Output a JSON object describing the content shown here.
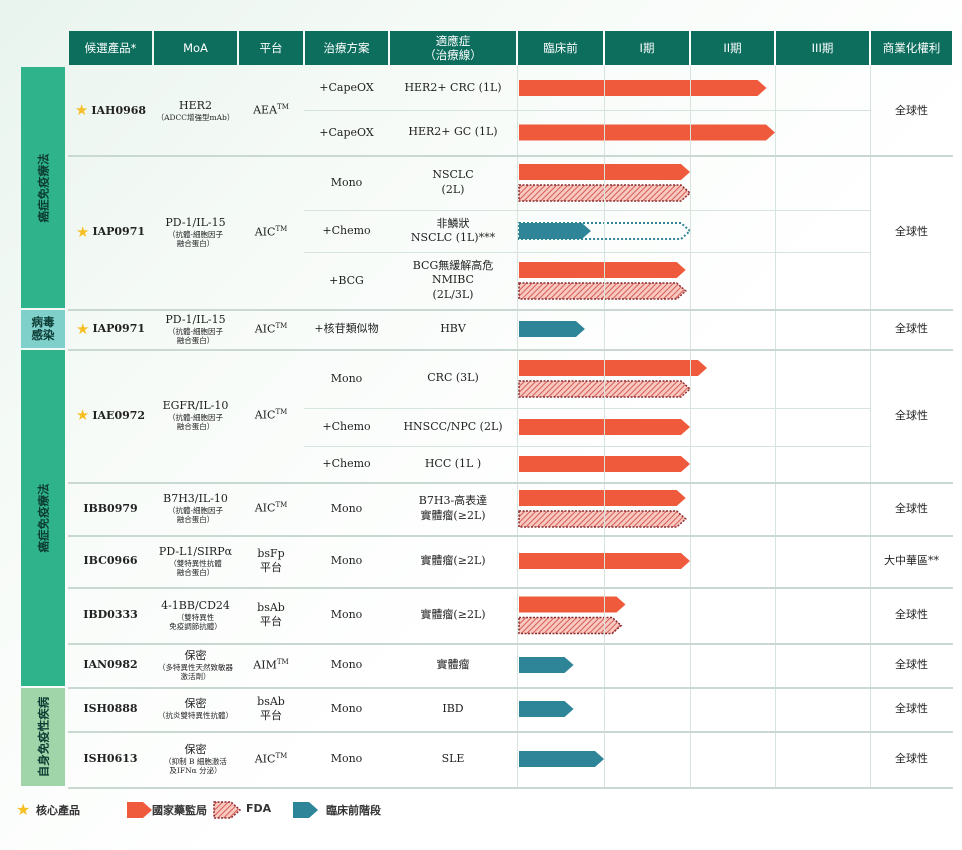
{
  "colors": {
    "header": "#0d6e5e",
    "nmpa": "#ef5a3c",
    "fda_border": "#8c2a2f",
    "preclinical": "#2d8597"
  },
  "headers": [
    "候選產品*",
    "MoA",
    "平台",
    "治療方案",
    "適應症\n（治療線）",
    "臨床前",
    "I期",
    "II期",
    "III期",
    "商業化權利"
  ],
  "categories": [
    {
      "label": "癌症免疫療法"
    },
    {
      "label": "病毒\n感染"
    },
    {
      "label": "癌症免疫療法"
    },
    {
      "label": "自身免疫性疾病"
    }
  ],
  "products": [
    {
      "name": "IAH0968",
      "core": true,
      "moa": "HER2",
      "moa_sub": "（ADCC增強型mAb）",
      "platform": "AEA",
      "platform_tm": true,
      "rights": "全球性",
      "rows": [
        {
          "regimen": "+CapeOX",
          "indication": "HER2+ CRC (1L)",
          "bars": [
            {
              "type": "nmpa",
              "progress": 2.9
            }
          ]
        },
        {
          "regimen": "+CapeOX",
          "indication": "HER2+ GC (1L)",
          "bars": [
            {
              "type": "nmpa",
              "progress": 3.0
            }
          ]
        }
      ]
    },
    {
      "name": "IAP0971",
      "core": true,
      "moa": "PD-1/IL-15",
      "moa_sub": "（抗體-細胞因子\n融合蛋白）",
      "platform": "AIC",
      "platform_tm": true,
      "rights": "全球性",
      "rows": [
        {
          "regimen": "Mono",
          "indication": "NSCLC\n(2L)",
          "bars": [
            {
              "type": "nmpa",
              "progress": 2.0
            },
            {
              "type": "fda",
              "progress": 2.0
            }
          ]
        },
        {
          "regimen": "+Chemo",
          "indication": "非鱗狀\nNSCLC (1L)***",
          "bars": [
            {
              "type": "preclinical",
              "progress": 0.85,
              "outline": 2.0
            }
          ]
        },
        {
          "regimen": "+BCG",
          "indication": "BCG無緩解高危\nNMIBC\n(2L/3L)",
          "bars": [
            {
              "type": "nmpa",
              "progress": 1.95
            },
            {
              "type": "fda",
              "progress": 1.95
            }
          ]
        }
      ]
    },
    {
      "name": "IAP0971",
      "core": true,
      "moa": "PD-1/IL-15",
      "moa_sub": "（抗體-細胞因子\n融合蛋白）",
      "platform": "AIC",
      "platform_tm": true,
      "rights": "全球性",
      "rows": [
        {
          "regimen": "+核苷類似物",
          "indication": "HBV",
          "bars": [
            {
              "type": "preclinical",
              "progress": 0.78
            }
          ]
        }
      ]
    },
    {
      "name": "IAE0972",
      "core": true,
      "moa": "EGFR/IL-10",
      "moa_sub": "（抗體-細胞因子\n融合蛋白）",
      "platform": "AIC",
      "platform_tm": true,
      "rights": "全球性",
      "rows": [
        {
          "regimen": "Mono",
          "indication": "CRC (3L)",
          "bars": [
            {
              "type": "nmpa",
              "progress": 2.2
            },
            {
              "type": "fda",
              "progress": 2.0
            }
          ]
        },
        {
          "regimen": "+Chemo",
          "indication": "HNSCC/NPC (2L)",
          "bars": [
            {
              "type": "nmpa",
              "progress": 2.0
            }
          ]
        },
        {
          "regimen": "+Chemo",
          "indication": "HCC (1L )",
          "bars": [
            {
              "type": "nmpa",
              "progress": 2.0
            }
          ]
        }
      ]
    },
    {
      "name": "IBB0979",
      "core": false,
      "moa": "B7H3/IL-10",
      "moa_sub": "（抗體-細胞因子\n融合蛋白）",
      "platform": "AIC",
      "platform_tm": true,
      "rights": "全球性",
      "rows": [
        {
          "regimen": "Mono",
          "indication": "B7H3-高表達\n實體瘤(≥2L)",
          "bars": [
            {
              "type": "nmpa",
              "progress": 1.95
            },
            {
              "type": "fda",
              "progress": 1.95
            }
          ]
        }
      ]
    },
    {
      "name": "IBC0966",
      "core": false,
      "moa": "PD-L1/SIRPα",
      "moa_sub": "（雙特異性抗體\n融合蛋白）",
      "platform": "bsFp\n平台",
      "platform_tm": false,
      "rights": "大中華區**",
      "rows": [
        {
          "regimen": "Mono",
          "indication": "實體瘤(≥2L)",
          "bars": [
            {
              "type": "nmpa",
              "progress": 2.0
            }
          ]
        }
      ]
    },
    {
      "name": "IBD0333",
      "core": false,
      "moa": "4-1BB/CD24",
      "moa_sub": "（雙特異性\n免疫調節抗體）",
      "platform": "bsAb\n平台",
      "platform_tm": false,
      "rights": "全球性",
      "rows": [
        {
          "regimen": "Mono",
          "indication": "實體瘤(≥2L)",
          "bars": [
            {
              "type": "nmpa",
              "progress": 1.25
            },
            {
              "type": "fda",
              "progress": 1.2
            }
          ]
        }
      ]
    },
    {
      "name": "IAN0982",
      "core": false,
      "moa": "保密",
      "moa_sub": "（多特異性天然致敏器\n激活劑）",
      "platform": "AIM",
      "platform_tm": true,
      "rights": "全球性",
      "rows": [
        {
          "regimen": "Mono",
          "indication": "實體瘤",
          "bars": [
            {
              "type": "preclinical",
              "progress": 0.65
            }
          ]
        }
      ]
    },
    {
      "name": "ISH0888",
      "core": false,
      "moa": "保密",
      "moa_sub": "（抗炎雙特異性抗體）",
      "platform": "bsAb\n平台",
      "platform_tm": false,
      "rights": "全球性",
      "rows": [
        {
          "regimen": "Mono",
          "indication": "IBD",
          "bars": [
            {
              "type": "preclinical",
              "progress": 0.65
            }
          ]
        }
      ]
    },
    {
      "name": "ISH0613",
      "core": false,
      "moa": "保密",
      "moa_sub": "（抑制 B 細胞激活\n及IFNα 分泌）",
      "platform": "AIC",
      "platform_tm": true,
      "rights": "全球性",
      "rows": [
        {
          "regimen": "Mono",
          "indication": "SLE",
          "bars": [
            {
              "type": "preclinical",
              "progress": 1.0
            }
          ]
        }
      ]
    }
  ],
  "legend": {
    "core": "核心產品",
    "nmpa": "國家藥監局",
    "fda": "FDA",
    "preclinical": "臨床前階段"
  }
}
